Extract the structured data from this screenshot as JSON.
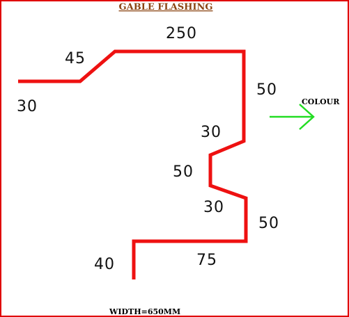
{
  "title": "GABLE  FLASHING",
  "colour_label": "COLOUR",
  "width_label": "WIDTH=650MM",
  "dimensions": {
    "left_flat": "30",
    "slope": "45",
    "top": "250",
    "right_drop": "50",
    "upper_return": "30",
    "inner_vertical": "50",
    "lower_return": "30",
    "lower_right_drop": "50",
    "bottom": "75",
    "left_leg": "40"
  },
  "colors": {
    "border": "#e00000",
    "profile": "#ee1111",
    "arrow": "#22dd22",
    "title": "#8b4513"
  }
}
